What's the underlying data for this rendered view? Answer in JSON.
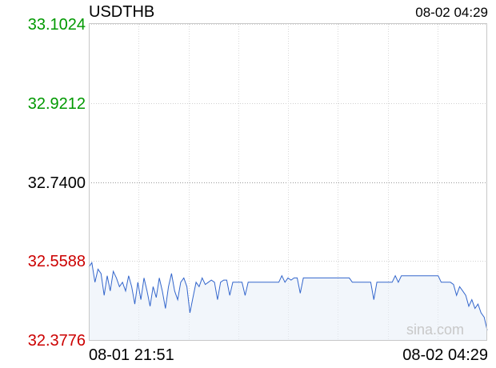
{
  "header": {
    "symbol": "USDTHB",
    "timestamp": "08-02 04:29"
  },
  "watermark": "sina.com",
  "colors": {
    "up": "#009900",
    "neutral": "#000000",
    "down": "#cc0000",
    "line": "#3366cc"
  },
  "chart_data": {
    "type": "line",
    "title": "USDTHB",
    "reference_price": 32.74,
    "ylim": [
      32.3776,
      33.1024
    ],
    "y_ticks": [
      {
        "label": "33.1024",
        "value": 33.1024,
        "tone": "up"
      },
      {
        "label": "32.9212",
        "value": 32.9212,
        "tone": "up"
      },
      {
        "label": "32.7400",
        "value": 32.74,
        "tone": "neutral"
      },
      {
        "label": "32.5588",
        "value": 32.5588,
        "tone": "down"
      },
      {
        "label": "32.3776",
        "value": 32.3776,
        "tone": "down"
      }
    ],
    "x_ticks": [
      "08-01 21:51",
      "08-02 04:29"
    ],
    "grid": true,
    "series": [
      {
        "values": [
          32.545,
          32.555,
          32.51,
          32.54,
          32.53,
          32.48,
          32.525,
          32.49,
          32.535,
          32.52,
          32.5,
          32.51,
          32.49,
          32.525,
          32.5,
          32.46,
          32.51,
          32.47,
          32.52,
          32.49,
          32.455,
          32.5,
          32.475,
          32.52,
          32.49,
          32.45,
          32.5,
          32.53,
          32.49,
          32.47,
          32.51,
          32.52,
          32.5,
          32.44,
          32.475,
          32.51,
          32.5,
          32.52,
          32.505,
          32.51,
          32.515,
          32.51,
          32.47,
          32.51,
          32.515,
          32.515,
          32.48,
          32.51,
          32.51,
          32.51,
          32.51,
          32.48,
          32.51,
          32.51,
          32.51,
          32.51,
          32.51,
          32.51,
          32.51,
          32.51,
          32.51,
          32.51,
          32.51,
          32.525,
          32.51,
          32.52,
          32.515,
          32.52,
          32.52,
          32.485,
          32.52,
          32.52,
          32.52,
          32.52,
          32.52,
          32.52,
          32.52,
          32.52,
          32.52,
          32.52,
          32.52,
          32.52,
          32.52,
          32.52,
          32.52,
          32.52,
          32.51,
          32.51,
          32.51,
          32.51,
          32.51,
          32.51,
          32.51,
          32.47,
          32.51,
          32.51,
          32.51,
          32.51,
          32.51,
          32.51,
          32.525,
          32.51,
          32.525,
          32.525,
          32.525,
          32.525,
          32.525,
          32.525,
          32.525,
          32.525,
          32.525,
          32.525,
          32.525,
          32.525,
          32.525,
          32.51,
          32.51,
          32.51,
          32.51,
          32.505,
          32.48,
          32.5,
          32.49,
          32.48,
          32.455,
          32.47,
          32.45,
          32.46,
          32.44,
          32.43,
          32.4
        ]
      }
    ]
  }
}
